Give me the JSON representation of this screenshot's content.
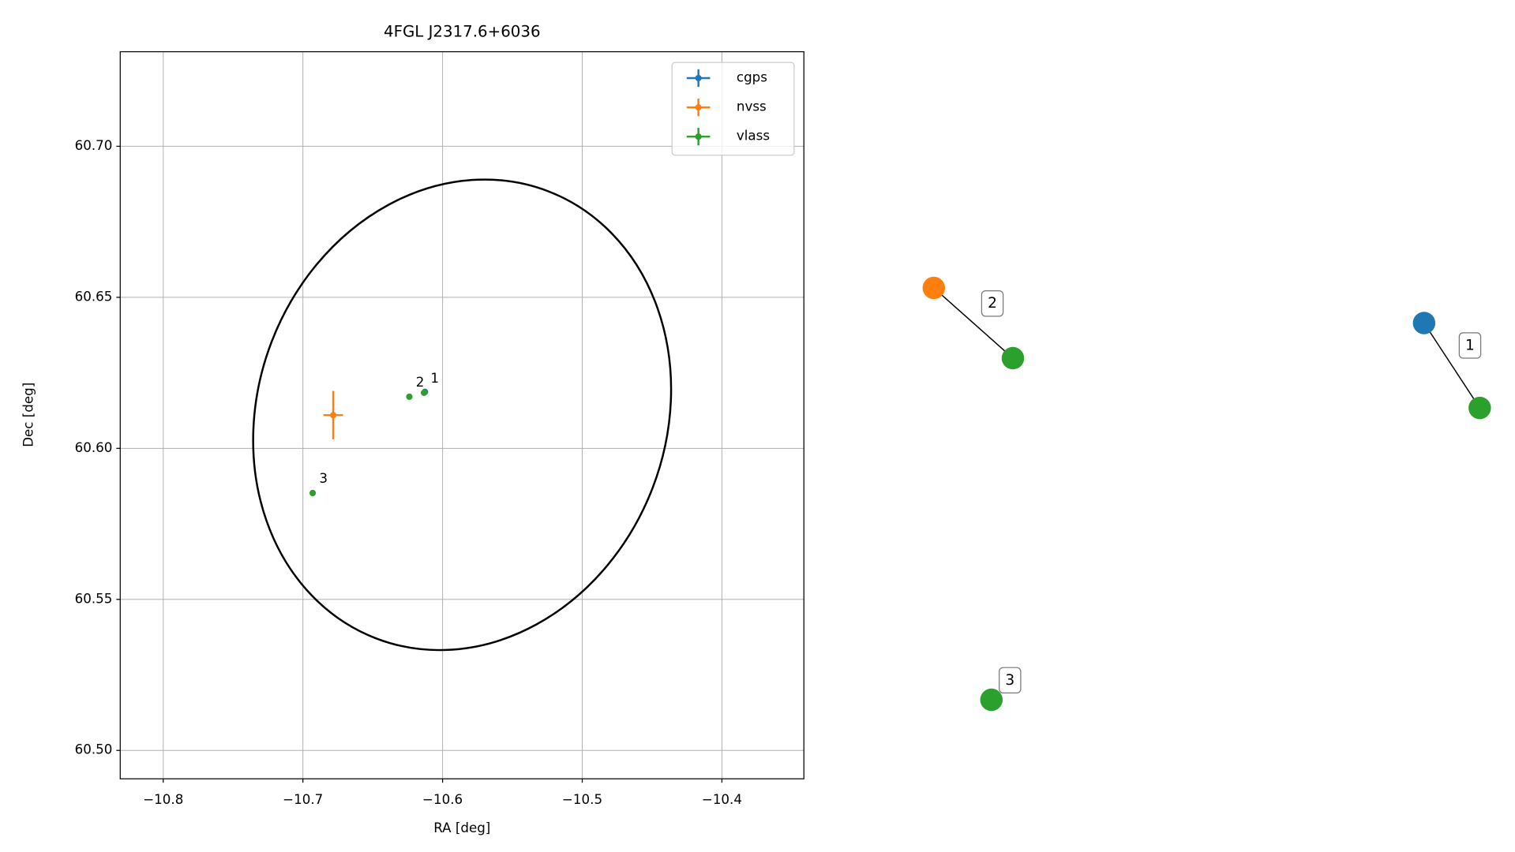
{
  "chart_data": {
    "type": "errorbar-scatter",
    "title": "4FGL J2317.6+6036",
    "x_label": "RA [deg]",
    "y_label": "Dec [deg]",
    "xlim": [
      -10.8308,
      -10.3413
    ],
    "ylim": [
      60.4906,
      60.7313
    ],
    "xticks": [
      {
        "value": -10.8,
        "label": "−10.8"
      },
      {
        "value": -10.7,
        "label": "−10.7"
      },
      {
        "value": -10.6,
        "label": "−10.6"
      },
      {
        "value": -10.5,
        "label": "−10.5"
      },
      {
        "value": -10.4,
        "label": "−10.4"
      }
    ],
    "yticks": [
      {
        "value": 60.5,
        "label": "60.50"
      },
      60.55,
      {
        "value": 60.6,
        "label": "60.60"
      },
      60.65,
      {
        "value": 60.7,
        "label": "60.70"
      }
    ],
    "grid": true,
    "legend": "upper right",
    "series": [
      {
        "name": "cgps",
        "color": "#1f77b4",
        "x": [
          -10.6126
        ],
        "y": [
          60.6187
        ],
        "xerr": [
          0.001
        ],
        "yerr": [
          0.0008
        ]
      },
      {
        "name": "nvss",
        "color": "#ff7f0e",
        "x": [
          -10.6783
        ],
        "y": [
          60.611
        ],
        "xerr": [
          0.007
        ],
        "yerr": [
          0.008
        ]
      },
      {
        "name": "vlass",
        "color": "#2ca02c",
        "x": [
          -10.6238,
          -10.6133,
          -10.693
        ],
        "y": [
          60.6171,
          60.6184,
          60.5852
        ],
        "xerr": [
          0.0005,
          0.0005,
          0.0005
        ],
        "yerr": [
          0.0005,
          0.0005,
          0.0005
        ],
        "point_labels": [
          "2",
          "1",
          "3"
        ]
      }
    ],
    "ellipse": {
      "x": -10.586,
      "y": 60.6111,
      "rx": 0.1461,
      "ry": 0.0793,
      "angle": 21,
      "color": "#000000"
    }
  },
  "graph": {
    "groups": [
      {
        "label": "1",
        "nodes": [
          "#1f77b4",
          "#2ca02c"
        ]
      },
      {
        "label": "2",
        "nodes": [
          "#ff7f0e",
          "#2ca02c"
        ]
      },
      {
        "label": "3",
        "nodes": [
          "#2ca02c"
        ]
      }
    ]
  }
}
